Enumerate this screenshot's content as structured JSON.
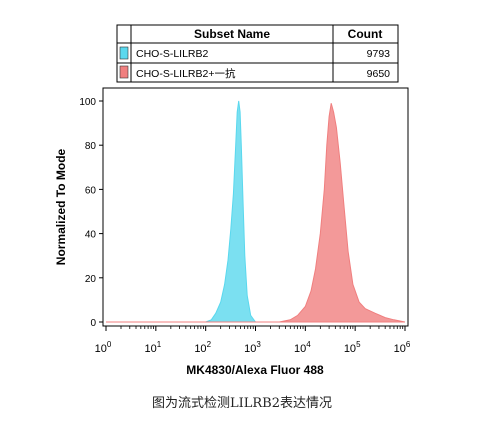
{
  "legend_table": {
    "headers": [
      "Subset Name",
      "Count"
    ],
    "rows": [
      {
        "name": "CHO-S-LILRB2",
        "count": "9793",
        "color": "#5ad8ee"
      },
      {
        "name": "CHO-S-LILRB2+一抗",
        "count": "9650",
        "color": "#f07f7f"
      }
    ]
  },
  "chart_data": {
    "type": "area",
    "xlabel": "MK4830/Alexa Fluor 488",
    "ylabel": "Normalized To Mode",
    "x_scale": "log",
    "xlim": [
      1,
      1000000
    ],
    "ylim": [
      0,
      100
    ],
    "x_ticks": [
      {
        "value": 1,
        "base": "10",
        "exp": "0"
      },
      {
        "value": 10,
        "base": "10",
        "exp": "1"
      },
      {
        "value": 100,
        "base": "10",
        "exp": "2"
      },
      {
        "value": 1000,
        "base": "10",
        "exp": "3"
      },
      {
        "value": 10000,
        "base": "10",
        "exp": "4"
      },
      {
        "value": 100000,
        "base": "10",
        "exp": "5"
      },
      {
        "value": 1000000,
        "base": "10",
        "exp": "6"
      }
    ],
    "y_ticks": [
      "0",
      "20",
      "40",
      "60",
      "80",
      "100"
    ],
    "grid": false,
    "series": [
      {
        "name": "CHO-S-LILRB2",
        "color": "#5ad8ee",
        "x": [
          1,
          100,
          130,
          160,
          200,
          240,
          280,
          320,
          360,
          400,
          430,
          460,
          490,
          520,
          560,
          610,
          680,
          800,
          1000,
          1000000
        ],
        "y": [
          0,
          0,
          1,
          4,
          9,
          17,
          28,
          42,
          58,
          80,
          95,
          100,
          95,
          80,
          55,
          30,
          12,
          3,
          0,
          0
        ]
      },
      {
        "name": "CHO-S-LILRB2+一抗",
        "color": "#f07f7f",
        "x": [
          1,
          3000,
          5000,
          7000,
          10000,
          13000,
          16000,
          20000,
          24000,
          27000,
          30000,
          33000,
          37000,
          42000,
          50000,
          60000,
          72000,
          90000,
          120000,
          160000,
          250000,
          400000,
          600000,
          1000000
        ],
        "y": [
          0,
          0,
          1,
          3,
          7,
          14,
          24,
          40,
          60,
          80,
          93,
          99,
          95,
          88,
          72,
          52,
          32,
          17,
          9,
          6,
          4,
          2,
          1,
          0
        ]
      }
    ]
  },
  "caption": "图为流式检测LILRB2表达情况"
}
